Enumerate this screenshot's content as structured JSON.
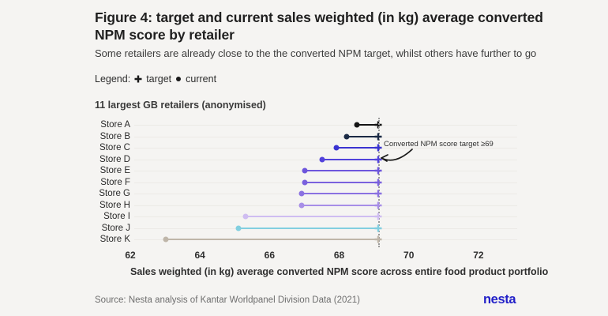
{
  "title": "Figure 4: target and current sales weighted (in kg) average converted NPM score by retailer",
  "subtitle": "Some retailers are already close to the the converted NPM target, whilst others have further to go",
  "legend": {
    "prefix": "Legend:",
    "target_label": "target",
    "current_label": "current",
    "target_icon": "plus-icon",
    "current_icon": "dot-icon"
  },
  "chart_data": {
    "type": "dumbbell",
    "heading": "11 largest GB retailers (anonymised)",
    "categories": [
      "Store A",
      "Store B",
      "Store C",
      "Store D",
      "Store E",
      "Store F",
      "Store G",
      "Store H",
      "Store I",
      "Store J",
      "Store K"
    ],
    "series": [
      {
        "name": "current",
        "values": [
          68.4,
          68.1,
          67.8,
          67.4,
          66.9,
          66.9,
          66.8,
          66.8,
          65.2,
          65.0,
          62.9
        ]
      },
      {
        "name": "target",
        "values": [
          69,
          69,
          69,
          69,
          69,
          69,
          69,
          69,
          69,
          69,
          69
        ]
      }
    ],
    "row_colors": [
      "#141414",
      "#1b2a45",
      "#3a33d1",
      "#5242db",
      "#6d55dc",
      "#7a61de",
      "#8a71e1",
      "#a78ee7",
      "#cfbdf1",
      "#82cfe0",
      "#bfb6a9"
    ],
    "xlim": [
      62,
      73
    ],
    "xticks": [
      62,
      64,
      66,
      68,
      70,
      72
    ],
    "xlabel": "Sales weighted (in kg) average converted NPM score across entire food product portfolio",
    "target_line": 69,
    "annotation": "Converted NPM score target ≥69",
    "grid": "horizontal-row-lines",
    "legend_position": "top-left"
  },
  "footer": {
    "source": "Source: Nesta analysis of Kantar Worldpanel Division Data (2021)",
    "logo_text": "nesta"
  },
  "colors": {
    "background": "#f5f4f2",
    "brand_blue": "#2220c8",
    "target_dotted_line": "#9b9b9b",
    "gridline": "#eceae6",
    "legend_marker": "#1a1a1a"
  }
}
